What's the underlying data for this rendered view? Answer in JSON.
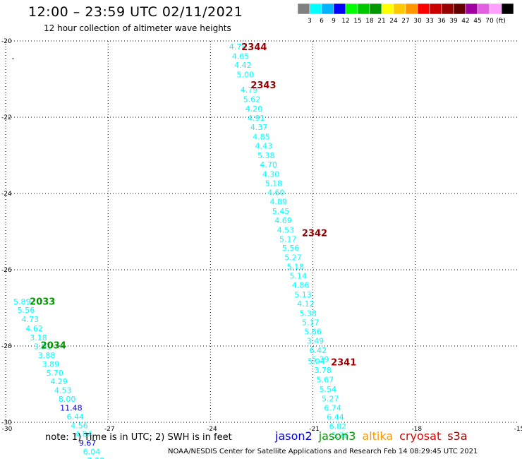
{
  "header": {
    "title": "12:00 – 23:59 UTC 02/11/2021",
    "subtitle": "12 hour collection of altimeter wave heights"
  },
  "legend": {
    "unit": "(ft)",
    "colors": [
      "#808080",
      "#00ffff",
      "#00b4ff",
      "#0000ff",
      "#00ff00",
      "#00c800",
      "#009600",
      "#ffff00",
      "#ffc800",
      "#ff9600",
      "#ff0000",
      "#c80000",
      "#960000",
      "#640000",
      "#a000a0",
      "#e060e0",
      "#ffa0ff",
      "#000000"
    ],
    "labels": [
      "3",
      "6",
      "9",
      "12",
      "15",
      "18",
      "21",
      "24",
      "27",
      "30",
      "33",
      "36",
      "39",
      "42",
      "45",
      "70"
    ]
  },
  "footer": {
    "note": "note: 1) Time is in UTC; 2) SWH is in feet",
    "satellites": [
      {
        "name": "jason2",
        "color": "#0000dd"
      },
      {
        "name": "jason3",
        "color": "#009600"
      },
      {
        "name": "altika",
        "color": "#ff9600"
      },
      {
        "name": "cryosat",
        "color": "#dd0000"
      },
      {
        "name": "s3a",
        "color": "#960000"
      }
    ],
    "credit": "NOAA/NESDIS Center for Satellite Applications and Research   Feb 14 08:29:45 UTC 2021"
  },
  "chart_data": {
    "type": "scatter",
    "xlim": [
      -30,
      -15
    ],
    "ylim": [
      -30,
      -20
    ],
    "x_ticks": [
      "-30",
      "-27",
      "-24",
      "-21",
      "-18",
      "-15"
    ],
    "y_ticks": [
      "-20",
      "-22",
      "-24",
      "-26",
      "-28",
      "-30"
    ],
    "grid": true,
    "series": [
      {
        "color": "#00ffff",
        "points": [
          {
            "x": -23.2,
            "y": -20.15,
            "v": "4.78"
          },
          {
            "x": -23.12,
            "y": -20.4,
            "v": "4.65"
          },
          {
            "x": -23.05,
            "y": -20.63,
            "v": "4.42"
          },
          {
            "x": -22.98,
            "y": -20.88,
            "v": "5.00"
          },
          {
            "x": -22.87,
            "y": -21.28,
            "v": "4.79"
          },
          {
            "x": -22.79,
            "y": -21.53,
            "v": "5.62"
          },
          {
            "x": -22.73,
            "y": -21.78,
            "v": "4.20"
          },
          {
            "x": -22.66,
            "y": -22.02,
            "v": "4.91"
          },
          {
            "x": -22.58,
            "y": -22.26,
            "v": "4.37"
          },
          {
            "x": -22.51,
            "y": -22.51,
            "v": "4.85"
          },
          {
            "x": -22.44,
            "y": -22.75,
            "v": "4.43"
          },
          {
            "x": -22.37,
            "y": -23.0,
            "v": "5.38"
          },
          {
            "x": -22.3,
            "y": -23.24,
            "v": "4.70"
          },
          {
            "x": -22.23,
            "y": -23.49,
            "v": "4.30"
          },
          {
            "x": -22.15,
            "y": -23.73,
            "v": "5.18"
          },
          {
            "x": -22.08,
            "y": -23.97,
            "v": "4.60"
          },
          {
            "x": -22.01,
            "y": -24.21,
            "v": "4.89"
          },
          {
            "x": -21.94,
            "y": -24.46,
            "v": "5.45"
          },
          {
            "x": -21.87,
            "y": -24.7,
            "v": "4.69"
          },
          {
            "x": -21.8,
            "y": -24.95,
            "v": "4.53"
          },
          {
            "x": -21.73,
            "y": -25.19,
            "v": "5.17"
          },
          {
            "x": -21.65,
            "y": -25.43,
            "v": "5.56"
          },
          {
            "x": -21.58,
            "y": -25.68,
            "v": "5.27"
          },
          {
            "x": -21.51,
            "y": -25.92,
            "v": "5.18"
          },
          {
            "x": -21.43,
            "y": -26.16,
            "v": "5.14"
          },
          {
            "x": -21.36,
            "y": -26.4,
            "v": "4.86"
          },
          {
            "x": -21.29,
            "y": -26.65,
            "v": "5.13"
          },
          {
            "x": -21.21,
            "y": -26.89,
            "v": "4.12"
          },
          {
            "x": -21.14,
            "y": -27.14,
            "v": "5.38"
          },
          {
            "x": -21.07,
            "y": -27.38,
            "v": "5.17"
          },
          {
            "x": -21.0,
            "y": -27.62,
            "v": "5.66"
          },
          {
            "x": -20.93,
            "y": -27.86,
            "v": "3.49"
          },
          {
            "x": -20.85,
            "y": -28.11,
            "v": "6.42"
          },
          {
            "x": -20.78,
            "y": -28.34,
            "v": "5.39"
          },
          {
            "x": -20.9,
            "y": -28.4,
            "v": "5.04"
          },
          {
            "x": -20.71,
            "y": -28.63,
            "v": "3.78"
          },
          {
            "x": -20.64,
            "y": -28.88,
            "v": "5.67"
          },
          {
            "x": -20.56,
            "y": -29.13,
            "v": "5.54"
          },
          {
            "x": -20.49,
            "y": -29.38,
            "v": "5.27"
          },
          {
            "x": -20.42,
            "y": -29.62,
            "v": "6.74"
          },
          {
            "x": -20.34,
            "y": -29.86,
            "v": "6.44"
          },
          {
            "x": -20.27,
            "y": -30.1,
            "v": "6.82"
          },
          {
            "x": -20.2,
            "y": -30.34,
            "v": "5.76"
          },
          {
            "x": -29.52,
            "y": -26.83,
            "v": "5.89"
          },
          {
            "x": -29.4,
            "y": -27.06,
            "v": "5.56"
          },
          {
            "x": -29.28,
            "y": -27.3,
            "v": "4.73"
          },
          {
            "x": -29.16,
            "y": -27.54,
            "v": "4.62"
          },
          {
            "x": -29.04,
            "y": -27.78,
            "v": "3.18"
          },
          {
            "x": -28.92,
            "y": -28.01,
            "v": "3.91"
          },
          {
            "x": -28.8,
            "y": -28.24,
            "v": "3.88"
          },
          {
            "x": -28.68,
            "y": -28.47,
            "v": "3.89"
          },
          {
            "x": -28.56,
            "y": -28.7,
            "v": "5.70"
          },
          {
            "x": -28.44,
            "y": -28.93,
            "v": "4.29"
          },
          {
            "x": -28.32,
            "y": -29.16,
            "v": "4.53"
          },
          {
            "x": -28.2,
            "y": -29.39,
            "v": "8.00"
          },
          {
            "x": -27.96,
            "y": -29.85,
            "v": "6.44"
          },
          {
            "x": -27.84,
            "y": -30.08,
            "v": "4.56"
          },
          {
            "x": -27.72,
            "y": -30.31,
            "v": "4.84"
          },
          {
            "x": -27.48,
            "y": -30.77,
            "v": "6.04"
          },
          {
            "x": -27.36,
            "y": -31.0,
            "v": "7.28"
          }
        ]
      },
      {
        "color": "#0000ff",
        "points": [
          {
            "x": -28.08,
            "y": -29.62,
            "v": "11.48"
          },
          {
            "x": -27.6,
            "y": -30.54,
            "v": "9.67"
          }
        ]
      }
    ],
    "annotations": [
      {
        "text": "2344",
        "x": -22.72,
        "y": -20.15,
        "color": "#960000"
      },
      {
        "text": "2343",
        "x": -22.45,
        "y": -21.15,
        "color": "#960000"
      },
      {
        "text": "2342",
        "x": -20.95,
        "y": -25.03,
        "color": "#960000"
      },
      {
        "text": "2341",
        "x": -20.1,
        "y": -28.42,
        "color": "#960000"
      },
      {
        "text": "2033",
        "x": -28.92,
        "y": -26.82,
        "color": "#009600"
      },
      {
        "text": "2034",
        "x": -28.6,
        "y": -27.97,
        "color": "#009600"
      }
    ],
    "markers": [
      {
        "x": -29.8,
        "y": -20.45
      }
    ]
  }
}
